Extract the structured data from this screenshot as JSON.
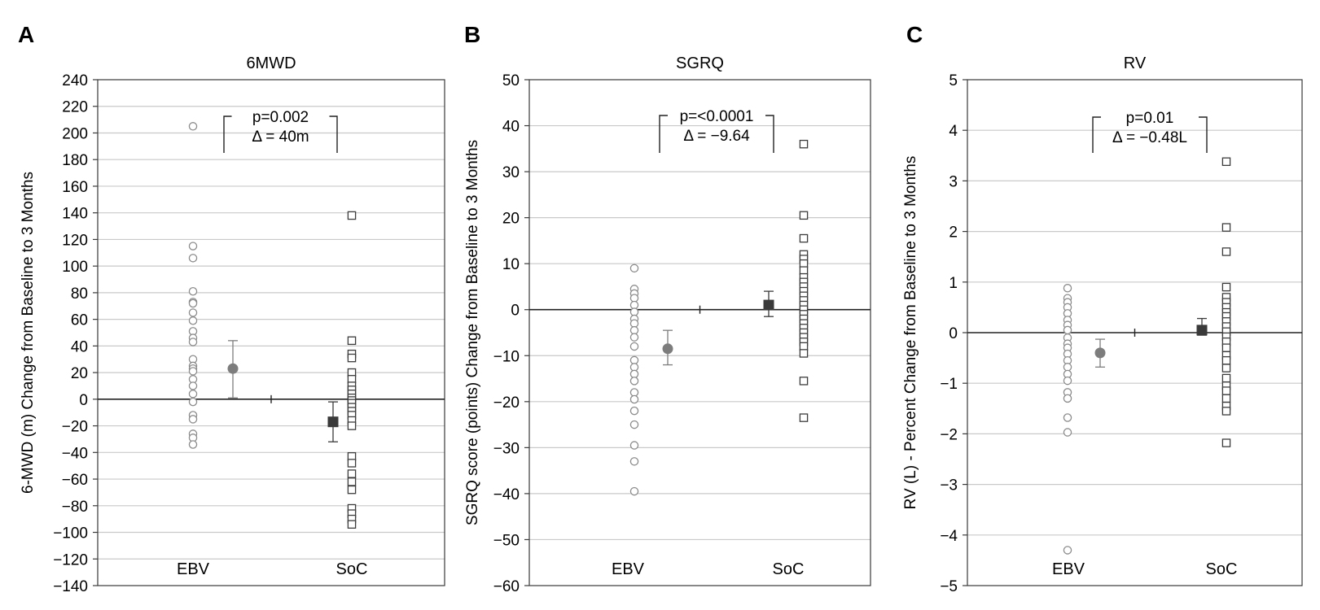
{
  "chart_data": [
    {
      "type": "scatter",
      "panel_label": "A",
      "title": "6MWD",
      "ylabel": "6-MWD (m) Change from Baseline to 3 Months",
      "categories": [
        "EBV",
        "SoC"
      ],
      "ylim": [
        -140,
        240
      ],
      "ytick_step": 20,
      "grid": true,
      "zero_line": true,
      "annotation": [
        "p=0.002",
        "Δ = 40m"
      ],
      "series": [
        {
          "category": "EBV",
          "marker": "circle",
          "values": [
            205,
            115,
            106,
            81,
            73,
            72,
            65,
            59,
            51,
            46,
            43,
            30,
            25,
            23,
            21,
            15,
            10,
            4,
            -2,
            -12,
            -15,
            -26,
            -29,
            -34
          ]
        },
        {
          "category": "SoC",
          "marker": "square",
          "values": [
            138,
            44,
            34,
            31,
            20,
            15,
            10,
            7,
            4,
            1,
            -1,
            -3,
            -6,
            -9,
            -12,
            -16,
            -20,
            -43,
            -48,
            -56,
            -62,
            -68,
            -82,
            -86,
            -90,
            -94
          ]
        }
      ],
      "summary": [
        {
          "category": "EBV",
          "marker": "circle",
          "mean": 23,
          "ci": [
            1,
            44
          ]
        },
        {
          "category": "SoC",
          "marker": "square",
          "mean": -17,
          "ci": [
            -32,
            -2
          ]
        }
      ]
    },
    {
      "type": "scatter",
      "panel_label": "B",
      "title": "SGRQ",
      "ylabel": "SGRQ score (points) Change from Baseline to 3 Months",
      "categories": [
        "EBV",
        "SoC"
      ],
      "ylim": [
        -60,
        50
      ],
      "ytick_step": 10,
      "grid": true,
      "zero_line": true,
      "annotation": [
        "p=<0.0001",
        "Δ = −9.64"
      ],
      "series": [
        {
          "category": "EBV",
          "marker": "circle",
          "values": [
            9,
            4.5,
            3.5,
            2.5,
            1,
            -0.5,
            -2,
            -3,
            -4.5,
            -6,
            -8,
            -11,
            -12.5,
            -14,
            -15.5,
            -18,
            -19.5,
            -22,
            -25,
            -29.5,
            -33,
            -39.5
          ]
        },
        {
          "category": "SoC",
          "marker": "square",
          "values": [
            36,
            20.5,
            15.5,
            12,
            11,
            10,
            8.5,
            7,
            6,
            5,
            4,
            3,
            2,
            1,
            0,
            -1,
            -2,
            -3,
            -4,
            -5,
            -6,
            -7,
            -8,
            -9.5,
            -15.5,
            -23.5
          ]
        }
      ],
      "summary": [
        {
          "category": "EBV",
          "marker": "circle",
          "mean": -8.5,
          "ci": [
            -12,
            -4.5
          ]
        },
        {
          "category": "SoC",
          "marker": "square",
          "mean": 1,
          "ci": [
            -1.5,
            4
          ]
        }
      ]
    },
    {
      "type": "scatter",
      "panel_label": "C",
      "title": "RV",
      "ylabel": "RV (L) - Percent Change from Baseline to 3 Months",
      "categories": [
        "EBV",
        "SoC"
      ],
      "ylim": [
        -5,
        5
      ],
      "ytick_step": 1,
      "grid": true,
      "zero_line": true,
      "annotation": [
        "p=0.01",
        "Δ = −0.48L"
      ],
      "series": [
        {
          "category": "EBV",
          "marker": "circle",
          "values": [
            0.88,
            0.68,
            0.6,
            0.5,
            0.38,
            0.25,
            0.15,
            0.05,
            -0.1,
            -0.22,
            -0.3,
            -0.42,
            -0.55,
            -0.68,
            -0.82,
            -0.95,
            -1.18,
            -1.3,
            -1.68,
            -1.97,
            -4.3
          ]
        },
        {
          "category": "SoC",
          "marker": "square",
          "values": [
            3.38,
            2.08,
            1.6,
            0.9,
            0.7,
            0.6,
            0.5,
            0.4,
            0.32,
            0.22,
            0.12,
            0.02,
            -0.08,
            -0.18,
            -0.3,
            -0.45,
            -0.55,
            -0.7,
            -0.9,
            -1.05,
            -1.15,
            -1.3,
            -1.45,
            -1.55,
            -2.18
          ]
        }
      ],
      "summary": [
        {
          "category": "EBV",
          "marker": "circle",
          "mean": -0.4,
          "ci": [
            -0.68,
            -0.13
          ]
        },
        {
          "category": "SoC",
          "marker": "square",
          "mean": 0.05,
          "ci": [
            -0.05,
            0.28
          ]
        }
      ]
    }
  ]
}
